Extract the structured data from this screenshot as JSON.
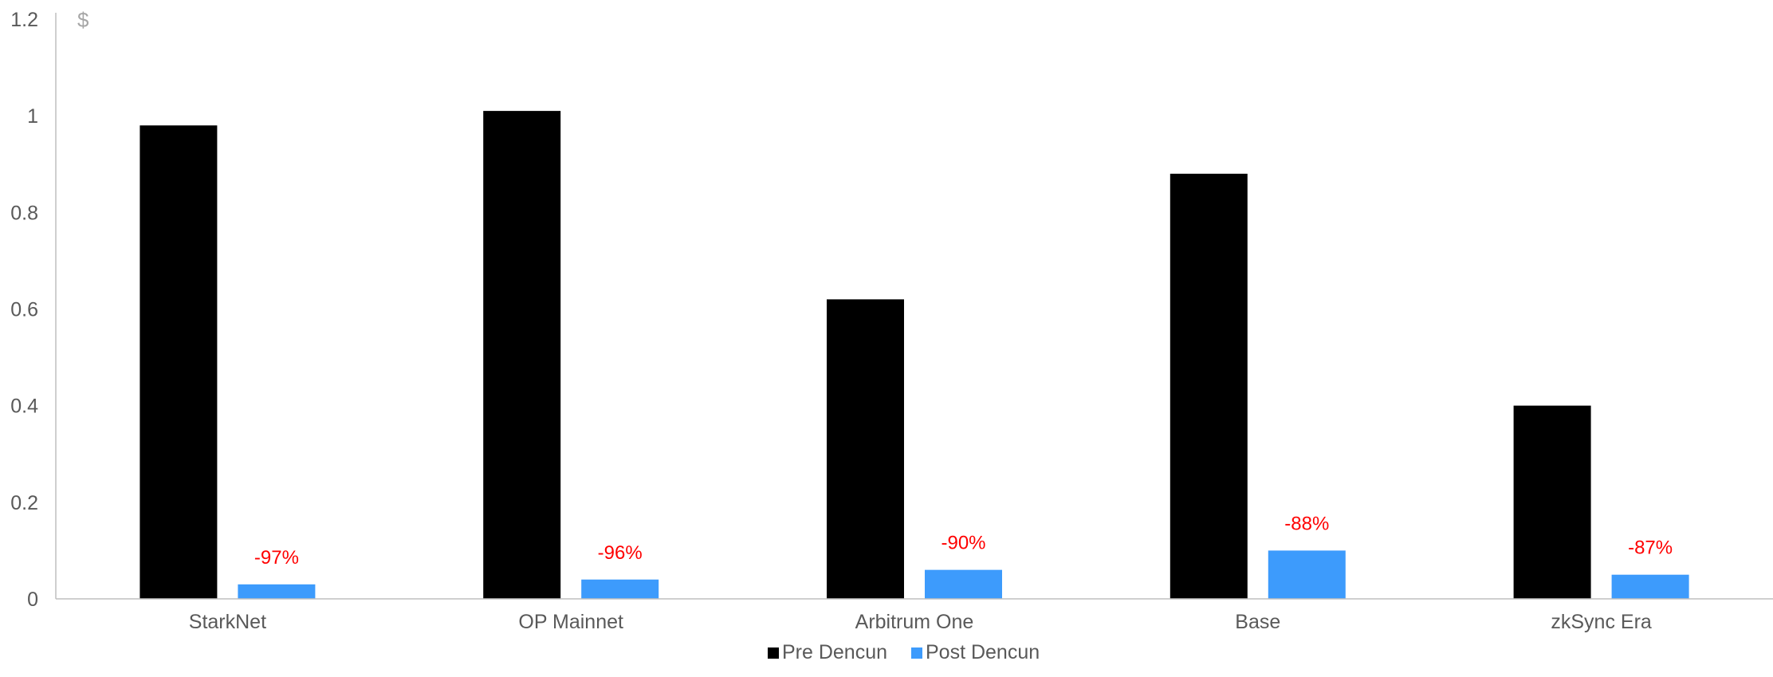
{
  "chart_data": {
    "type": "bar",
    "ylabel": "$",
    "ylim": [
      0,
      1.2
    ],
    "yticks": [
      0,
      0.2,
      0.4,
      0.6,
      0.8,
      1,
      1.2
    ],
    "ytick_labels": [
      "0",
      "0.2",
      "0.4",
      "0.6",
      "0.8",
      "1",
      "1.2"
    ],
    "categories": [
      "StarkNet",
      "OP Mainnet",
      "Arbitrum One",
      "Base",
      "zkSync Era"
    ],
    "series": [
      {
        "name": "Pre Dencun",
        "values": [
          0.98,
          1.01,
          0.62,
          0.88,
          0.4
        ]
      },
      {
        "name": "Post Dencun",
        "values": [
          0.03,
          0.04,
          0.06,
          0.1,
          0.05
        ]
      }
    ],
    "annotations": [
      "-97%",
      "-96%",
      "-90%",
      "-88%",
      "-87%"
    ],
    "grid": false,
    "legend_position": "bottom"
  },
  "colors": {
    "pre": "#000000",
    "post": "#3d9bfc",
    "annotation": "#ff0000",
    "axis": "#bfbfbf",
    "text": "#595959"
  }
}
